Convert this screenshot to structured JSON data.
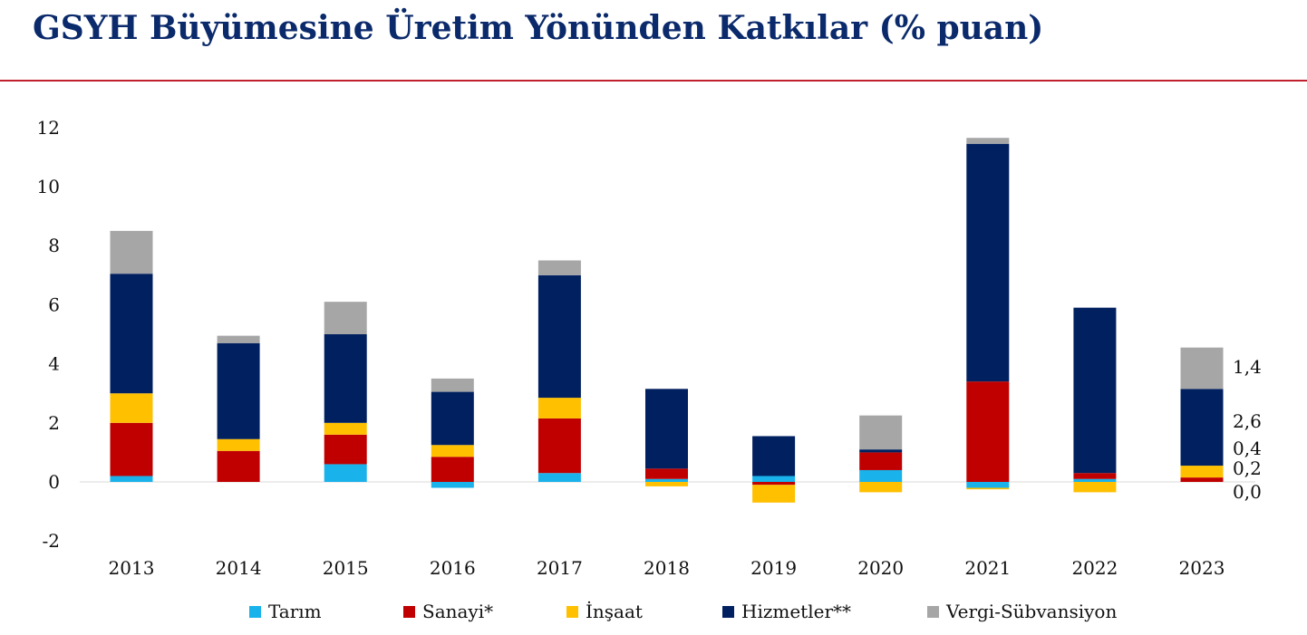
{
  "page": {
    "title": "GSYH Büyümesine Üretim Yönünden Katkılar (% puan)",
    "rule_color": "#c0202e",
    "title_color": "#0b2a6b"
  },
  "chart_data": {
    "type": "bar",
    "stacked": true,
    "categories": [
      "2013",
      "2014",
      "2015",
      "2016",
      "2017",
      "2018",
      "2019",
      "2020",
      "2021",
      "2022",
      "2023"
    ],
    "ylim": [
      -2,
      12
    ],
    "yticks": [
      -2,
      0,
      2,
      4,
      6,
      8,
      10,
      12
    ],
    "ytick_labels": [
      "-2",
      "0",
      "2",
      "4",
      "6",
      "8",
      "10",
      "12"
    ],
    "grid": false,
    "legend_position": "bottom",
    "series": [
      {
        "name": "Tarım",
        "color": "#19b2ea",
        "values": [
          0.2,
          0.0,
          0.6,
          -0.2,
          0.3,
          0.1,
          0.2,
          0.4,
          -0.2,
          0.1,
          0.0
        ]
      },
      {
        "name": "Sanayi*",
        "color": "#c00000",
        "values": [
          1.8,
          1.05,
          1.0,
          0.85,
          1.85,
          0.35,
          -0.1,
          0.6,
          3.4,
          0.2,
          0.15
        ]
      },
      {
        "name": "İnşaat",
        "color": "#ffc000",
        "values": [
          1.0,
          0.4,
          0.4,
          0.4,
          0.7,
          -0.15,
          -0.6,
          -0.35,
          -0.05,
          -0.35,
          0.4
        ]
      },
      {
        "name": "Hizmetler**",
        "color": "#002060",
        "values": [
          4.05,
          3.25,
          3.0,
          1.8,
          4.15,
          2.7,
          1.35,
          0.1,
          8.05,
          5.6,
          2.6
        ]
      },
      {
        "name": "Vergi-Sübvansiyon",
        "color": "#a6a6a6",
        "values": [
          1.45,
          0.25,
          1.1,
          0.45,
          0.5,
          0.0,
          0.0,
          1.15,
          0.2,
          0.0,
          1.4
        ]
      }
    ],
    "annotations_2023": [
      "1,4",
      "2,6",
      "0,4",
      "0,2",
      "0,0"
    ]
  }
}
